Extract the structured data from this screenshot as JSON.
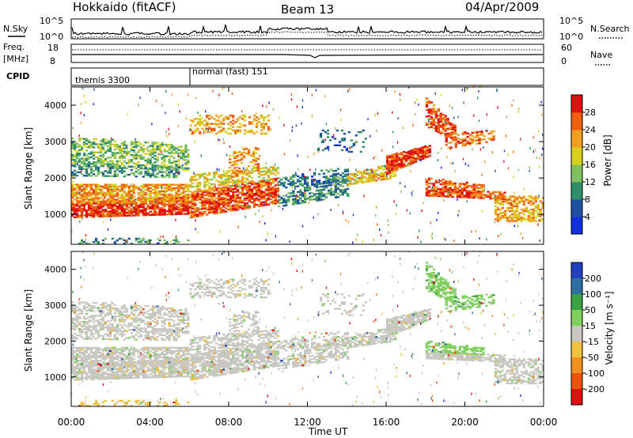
{
  "header": {
    "station": "Hokkaido (fitACF)",
    "beam": "Beam 13",
    "date": "04/Apr/2009"
  },
  "noise_panel": {
    "left_label": "N.Sky",
    "right_label": "N.Search",
    "left_ticks": [
      "10^5",
      "10^0"
    ],
    "right_ticks": [
      "10^5",
      "10^0"
    ]
  },
  "freq_panel": {
    "left_label_line1": "Freq.",
    "left_label_line2": "[MHz]",
    "right_label": "Nave",
    "left_ticks": [
      "18",
      "8"
    ],
    "right_ticks": [
      "60",
      "0"
    ]
  },
  "cpid_panel": {
    "label": "CPID",
    "segments": [
      {
        "name": "themis 3300",
        "start_hour": 0,
        "end_hour": 6
      },
      {
        "name": "normal (fast) 151",
        "start_hour": 6,
        "end_hour": 24
      }
    ]
  },
  "colors": {
    "power_scale": [
      "#1030e0",
      "#2050a0",
      "#2f8f6a",
      "#7fc060",
      "#d8d020",
      "#f0a020",
      "#f06010",
      "#e01010"
    ],
    "velocity_scale": [
      "#2040c0",
      "#3070a0",
      "#3aa040",
      "#80d060",
      "#c8c8c0",
      "#f0c040",
      "#f09020",
      "#f05010",
      "#e01010"
    ]
  },
  "chart_data": [
    {
      "type": "heatmap",
      "name": "power",
      "ylabel": "Slant Range [km]",
      "yticks": [
        "1000",
        "2000",
        "3000",
        "4000"
      ],
      "ylim": [
        180,
        4500
      ],
      "xlim": [
        0,
        24
      ],
      "colorbar_label": "Power [dB]",
      "colorbar_ticks": [
        "4",
        "8",
        "12",
        "16",
        "20",
        "24",
        "28"
      ],
      "colorbar_range": [
        0,
        32
      ]
    },
    {
      "type": "heatmap",
      "name": "velocity",
      "ylabel": "Slant Range [km]",
      "yticks": [
        "1000",
        "2000",
        "3000",
        "4000"
      ],
      "ylim": [
        180,
        4500
      ],
      "xlim": [
        0,
        24
      ],
      "colorbar_label": "Velocity [m s⁻¹]",
      "colorbar_ticks": [
        "200",
        "100",
        "50",
        "15",
        "-15",
        "-50",
        "-100",
        "-200"
      ]
    }
  ],
  "time_axis": {
    "label": "Time UT",
    "ticks": [
      "00:00",
      "04:00",
      "08:00",
      "12:00",
      "16:00",
      "20:00",
      "00:00"
    ]
  }
}
